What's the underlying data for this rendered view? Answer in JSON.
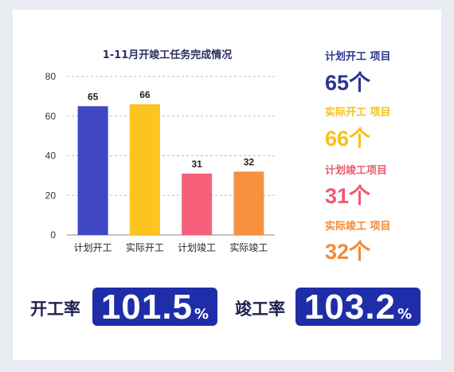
{
  "chart_data": {
    "type": "bar",
    "title": "1-11月开竣工任务完成情况",
    "categories": [
      "计划开工",
      "实际开工",
      "计划竣工",
      "实际竣工"
    ],
    "values": [
      65,
      66,
      31,
      32
    ],
    "colors": [
      "#3f47c2",
      "#fbc41f",
      "#f7607a",
      "#f8913f"
    ],
    "ylim": [
      0,
      80
    ],
    "yticks": [
      0,
      20,
      40,
      60,
      80
    ],
    "grid": true,
    "xlabel": "",
    "ylabel": ""
  },
  "stats": [
    {
      "label": "计划开工 项目",
      "num": "65",
      "unit": "个",
      "color": "#2b3590"
    },
    {
      "label": "实际开工 项目",
      "num": "66",
      "unit": "个",
      "color": "#f5c11d"
    },
    {
      "label": "计划竣工项目",
      "num": "31",
      "unit": "个",
      "color": "#ea5c72"
    },
    {
      "label": "实际竣工 项目",
      "num": "32",
      "unit": "个",
      "color": "#f08a3a"
    }
  ],
  "rates": {
    "start_label": "开工率",
    "start_value": "101.5",
    "finish_label": "竣工率",
    "finish_value": "103.2",
    "unit": "%"
  }
}
